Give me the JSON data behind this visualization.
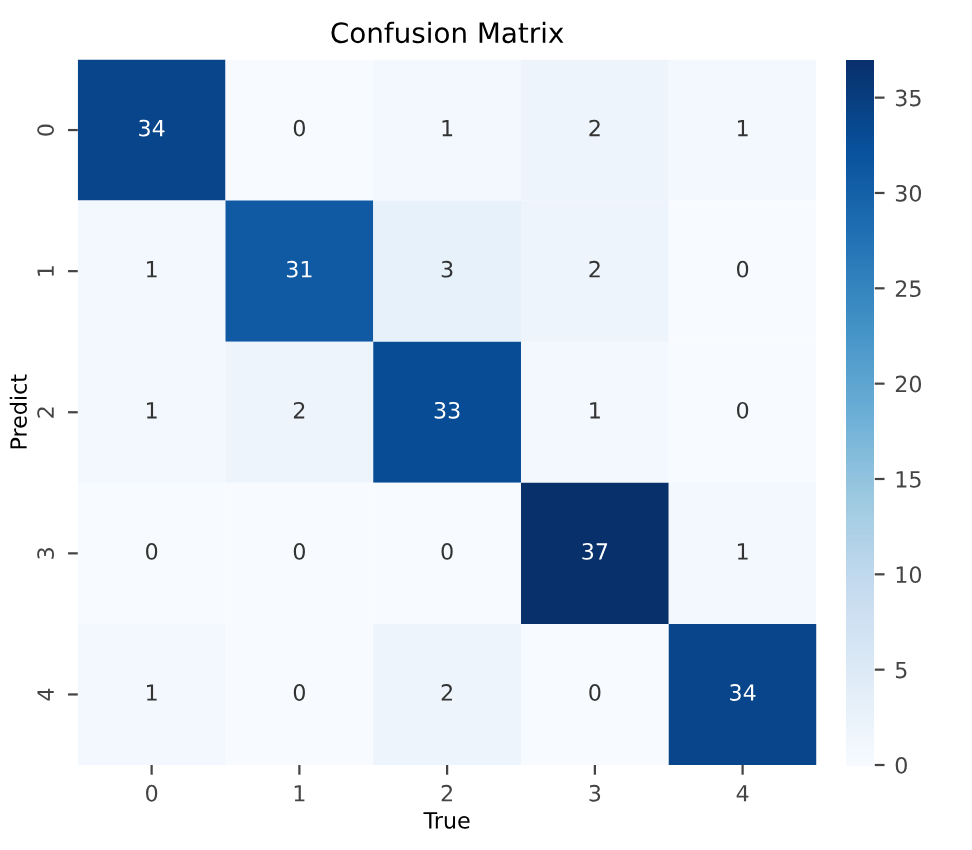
{
  "chart_data": {
    "type": "heatmap",
    "title": "Confusion Matrix",
    "xlabel": "True",
    "ylabel": "Predict",
    "categories": [
      "0",
      "1",
      "2",
      "3",
      "4"
    ],
    "y_categories": [
      "0",
      "1",
      "2",
      "3",
      "4"
    ],
    "cells": [
      [
        34,
        0,
        1,
        2,
        1
      ],
      [
        1,
        31,
        3,
        2,
        0
      ],
      [
        1,
        2,
        33,
        1,
        0
      ],
      [
        0,
        0,
        0,
        37,
        1
      ],
      [
        1,
        0,
        2,
        0,
        34
      ]
    ],
    "clim": [
      0,
      37
    ],
    "cticks": [
      0,
      5,
      10,
      15,
      20,
      25,
      30,
      35
    ],
    "data_labels": true
  }
}
